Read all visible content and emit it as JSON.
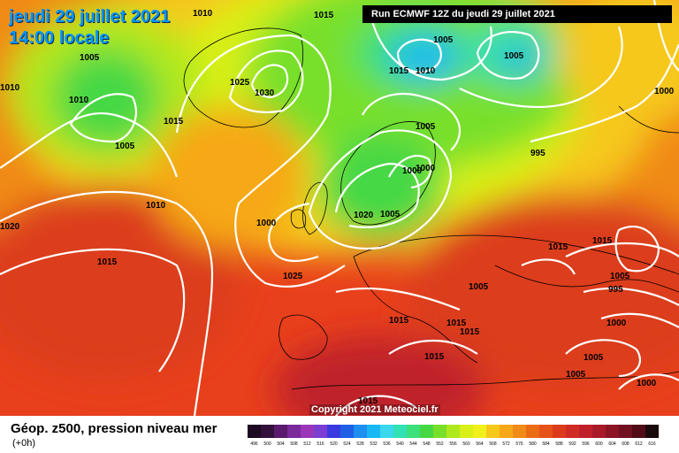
{
  "header": {
    "date": "jeudi 29 juillet 2021",
    "time": "14:00 locale",
    "run": "Run ECMWF 12Z du jeudi 29 juillet 2021"
  },
  "copyright": "Copyright 2021 Meteociel.fr",
  "footer": {
    "title": "Géop. z500, pression niveau mer",
    "subtitle": "(+0h)"
  },
  "isobar_labels": [
    "1010",
    "1015",
    "1005",
    "1010",
    "1015",
    "1005",
    "1025",
    "1030",
    "1010",
    "1005",
    "1010",
    "1015",
    "1005",
    "1005",
    "1000",
    "1005",
    "1000",
    "995",
    "1010",
    "1020",
    "1020",
    "1000",
    "1015",
    "1025",
    "1005",
    "1015",
    "1015",
    "1005",
    "995",
    "1015",
    "1015",
    "1015",
    "1015",
    "1000",
    "1005",
    "1005",
    "1000",
    "1000",
    "1015"
  ],
  "legend": {
    "ticks": [
      "496",
      "500",
      "504",
      "508",
      "512",
      "516",
      "520",
      "524",
      "528",
      "532",
      "536",
      "540",
      "544",
      "548",
      "552",
      "556",
      "560",
      "564",
      "568",
      "572",
      "576",
      "580",
      "584",
      "588",
      "592",
      "596",
      "600",
      "604",
      "608",
      "612",
      "616"
    ],
    "colors": [
      "#1e0a23",
      "#32113a",
      "#5a1a6e",
      "#7a2a9a",
      "#9a37b8",
      "#7a3fd2",
      "#3a3ae0",
      "#1f5fe6",
      "#1c8ff0",
      "#19b8f5",
      "#3ad8ee",
      "#32e0b4",
      "#3be07a",
      "#46d844",
      "#78e02a",
      "#b0e81e",
      "#d8f018",
      "#f2f01a",
      "#f6c81a",
      "#f6a818",
      "#f08a18",
      "#ec6c16",
      "#e65218",
      "#dc3c1c",
      "#d02c24",
      "#c0202a",
      "#a81a28",
      "#8c1424",
      "#701020",
      "#520c18",
      "#1a0a0a"
    ]
  }
}
